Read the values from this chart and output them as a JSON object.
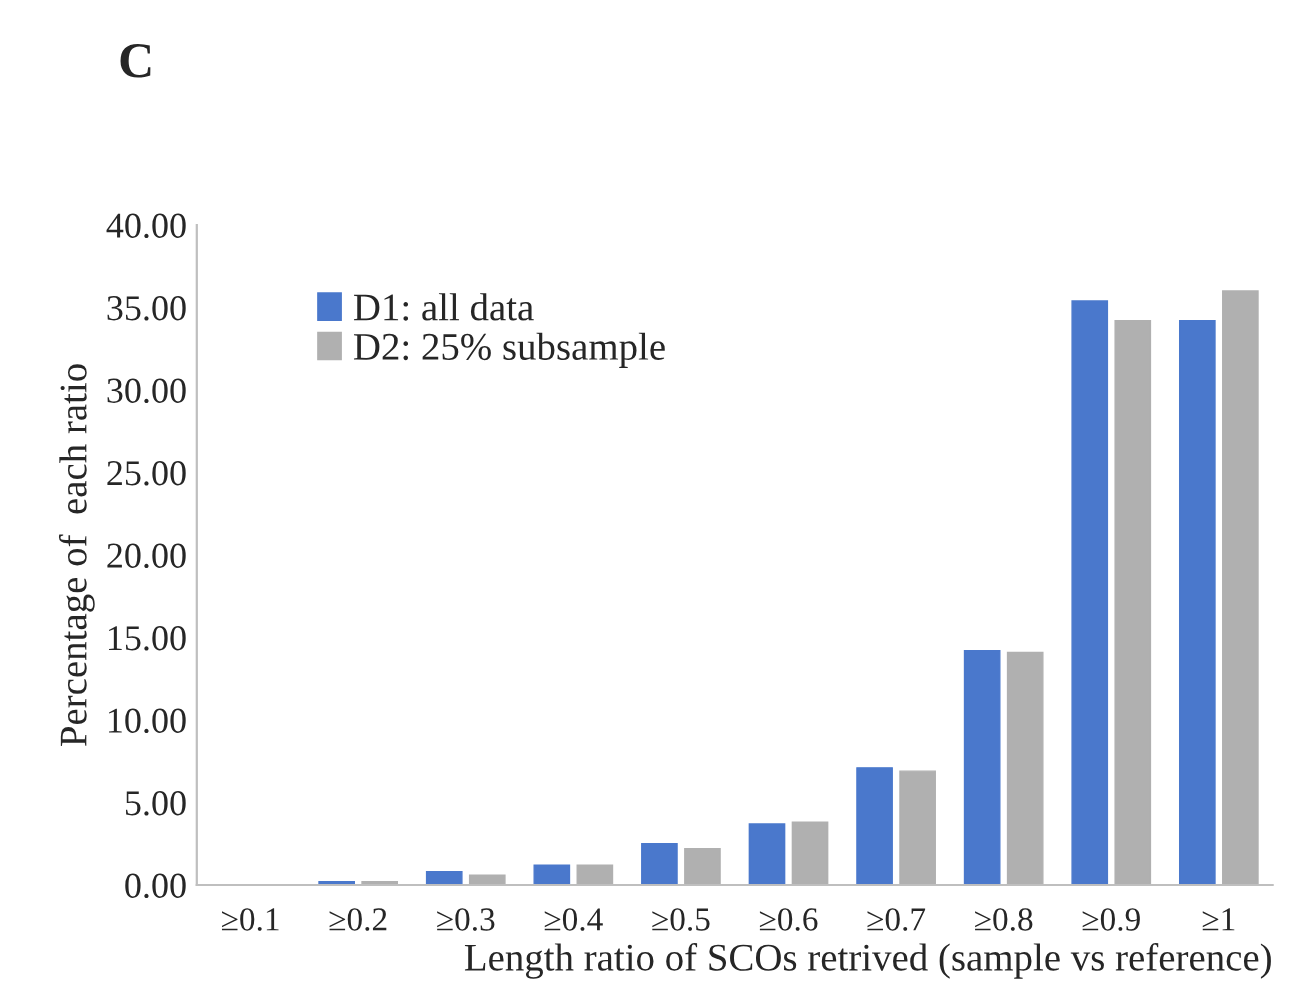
{
  "chart_data": {
    "type": "bar",
    "title": "C",
    "xlabel": "Length ratio of SCOs retrived (sample vs reference)",
    "ylabel": "Percentage of  each ratio",
    "categories": [
      "≥0.1",
      "≥0.2",
      "≥0.3",
      "≥0.4",
      "≥0.5",
      "≥0.6",
      "≥0.7",
      "≥0.8",
      "≥0.9",
      "≥1"
    ],
    "series": [
      {
        "name": "D1: all data",
        "color": "#4a78cc",
        "values": [
          0.0,
          0.2,
          0.8,
          1.2,
          2.5,
          3.7,
          7.1,
          14.2,
          35.4,
          34.2
        ]
      },
      {
        "name": "D2: 25% subsample",
        "color": "#b0b0b0",
        "values": [
          0.0,
          0.2,
          0.6,
          1.2,
          2.2,
          3.8,
          6.9,
          14.1,
          34.2,
          36.0
        ]
      }
    ],
    "ylim": [
      0,
      40
    ],
    "yticks": [
      {
        "value": 0,
        "label": "0.00"
      },
      {
        "value": 5,
        "label": "5.00"
      },
      {
        "value": 10,
        "label": "10.00"
      },
      {
        "value": 15,
        "label": "15.00"
      },
      {
        "value": 20,
        "label": "20.00"
      },
      {
        "value": 25,
        "label": "25.00"
      },
      {
        "value": 30,
        "label": "30.00"
      },
      {
        "value": 35,
        "label": "35.00"
      },
      {
        "value": 40,
        "label": "40.00"
      }
    ],
    "grid": false,
    "legend": "top left"
  }
}
